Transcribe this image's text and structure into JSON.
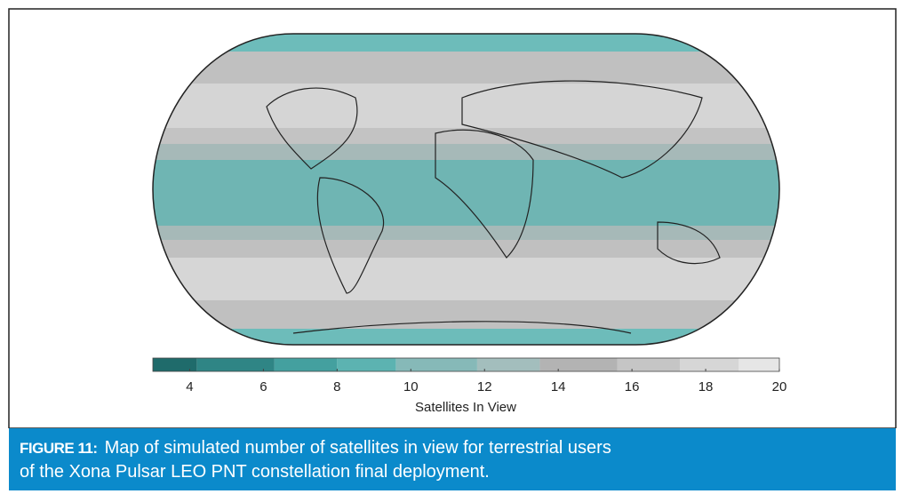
{
  "figure": {
    "label": "FIGURE 11:",
    "caption_lines": [
      "Map of simulated number of satellites in view for terrestrial users",
      "of the Xona Pulsar LEO PNT constellation final deployment."
    ]
  },
  "chart_data": {
    "type": "colorbar",
    "xlabel": "Satellites In View",
    "xlim": [
      3,
      20
    ],
    "xticks": [
      4,
      6,
      8,
      10,
      12,
      14,
      16,
      18,
      20
    ],
    "levels": [
      3,
      4.2,
      6.3,
      8,
      9.6,
      11.8,
      13.5,
      15.6,
      17.3,
      18.9,
      20
    ],
    "colors": [
      "#1f6b6b",
      "#2f8585",
      "#44a09f",
      "#5cb3b1",
      "#86b9b8",
      "#a3bebd",
      "#b3b3b3",
      "#c5c5c5",
      "#d6d6d6",
      "#e6e6e6"
    ]
  }
}
